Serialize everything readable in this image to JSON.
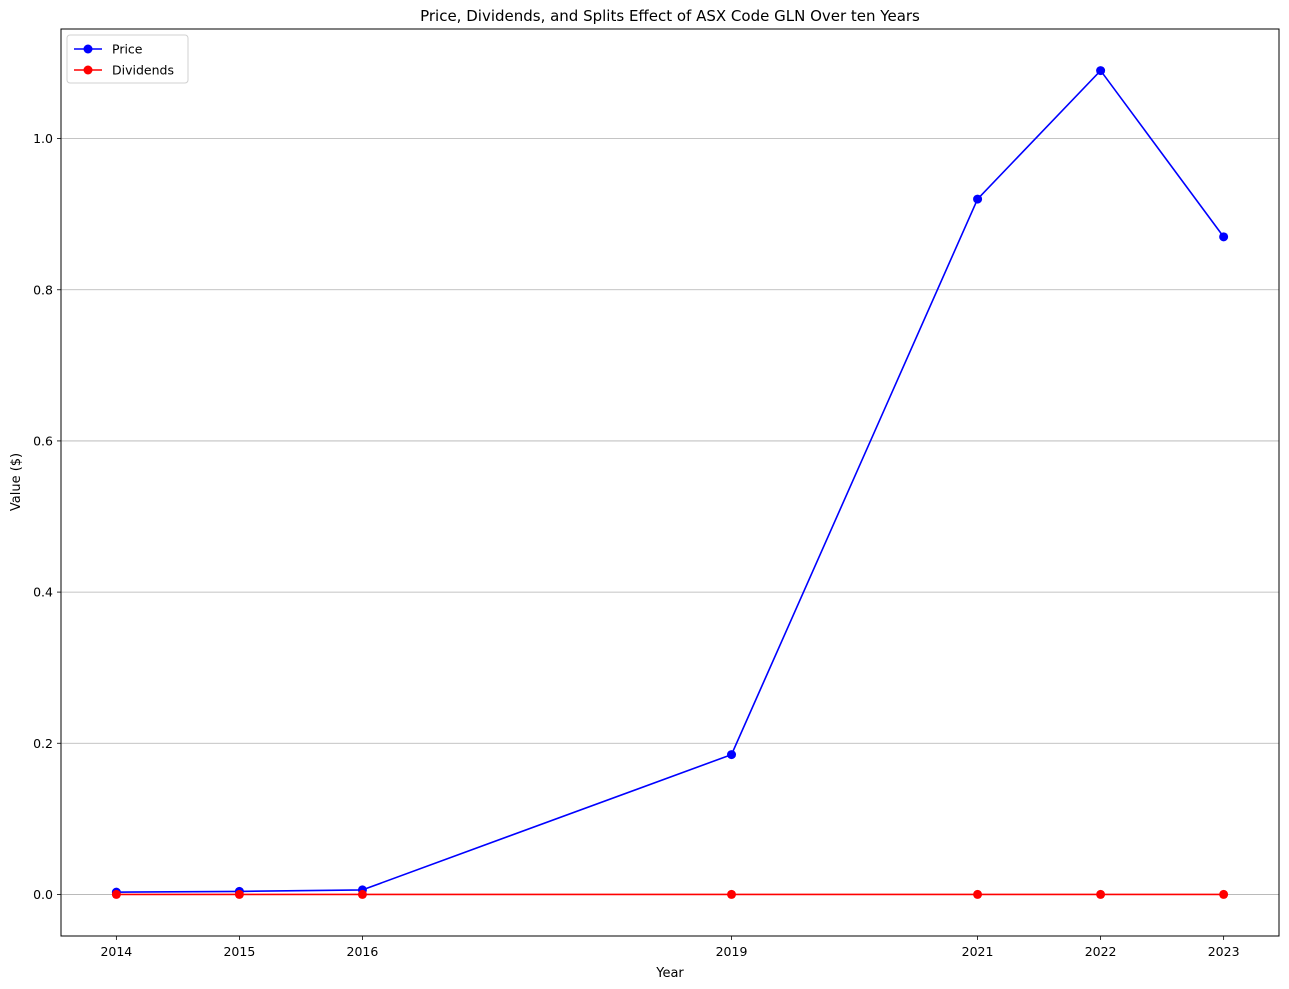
{
  "chart_data": {
    "type": "line",
    "title": "Price, Dividends, and Splits Effect of ASX Code GLN Over ten Years",
    "xlabel": "Year",
    "ylabel": "Value ($)",
    "x": [
      2014,
      2015,
      2016,
      2019,
      2021,
      2022,
      2023
    ],
    "x_tick_labels": [
      "2014",
      "2015",
      "2016",
      "2019",
      "2021",
      "2022",
      "2023"
    ],
    "y_ticks": [
      0.0,
      0.2,
      0.4,
      0.6,
      0.8,
      1.0
    ],
    "y_tick_labels": [
      "0.0",
      "0.2",
      "0.4",
      "0.6",
      "0.8",
      "1.0"
    ],
    "xlim": [
      2013.55,
      2023.45
    ],
    "ylim": [
      -0.055,
      1.145
    ],
    "grid": "horizontal",
    "legend_position": "top-left",
    "series": [
      {
        "name": "Price",
        "color": "#0000ff",
        "values": [
          0.003,
          0.004,
          0.006,
          0.185,
          0.92,
          1.09,
          0.87
        ]
      },
      {
        "name": "Dividends",
        "color": "#ff0000",
        "values": [
          0.0,
          0.0,
          0.0,
          0.0,
          0.0,
          0.0,
          0.0
        ]
      }
    ]
  }
}
